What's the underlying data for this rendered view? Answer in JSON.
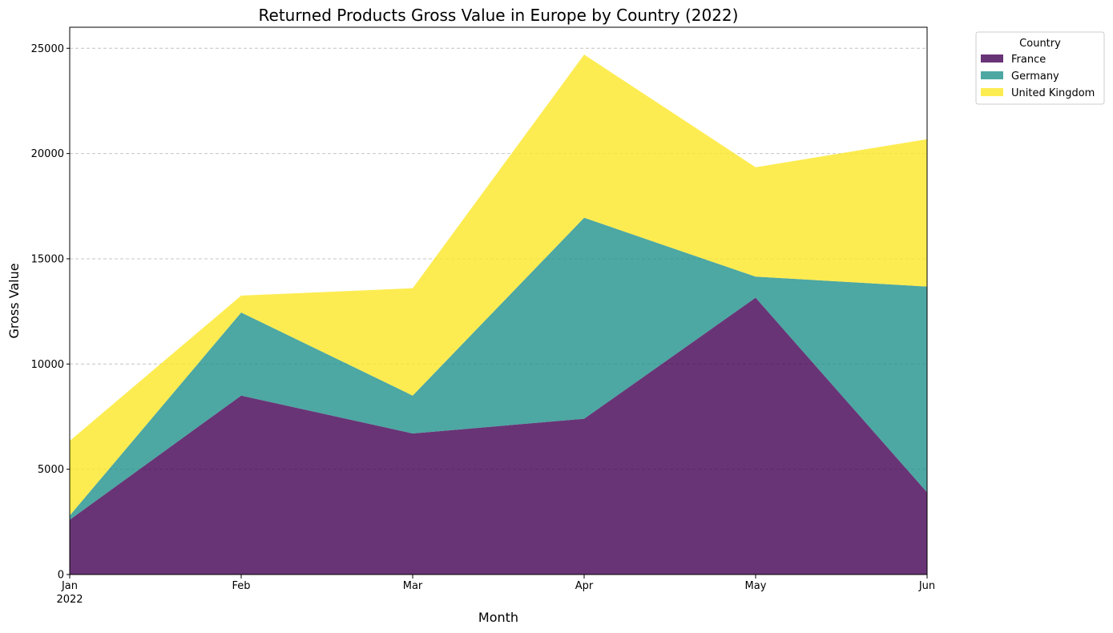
{
  "chart_data": {
    "type": "area",
    "stacked": true,
    "title": "Returned Products Gross Value in Europe by Country (2022)",
    "xlabel": "Month",
    "ylabel": "Gross Value",
    "categories": [
      "Jan",
      "Feb",
      "Mar",
      "Apr",
      "May",
      "Jun"
    ],
    "year_label": "2022",
    "ylim": [
      0,
      26000
    ],
    "yticks": [
      0,
      5000,
      10000,
      15000,
      20000,
      25000
    ],
    "grid": "y-dashed",
    "legend_title": "Country",
    "legend_position": "outside-top-right",
    "series": [
      {
        "name": "France",
        "color": "#440154",
        "values": [
          2600,
          8500,
          6700,
          7400,
          13150,
          3900
        ]
      },
      {
        "name": "Germany",
        "color": "#21918c",
        "values": [
          200,
          3950,
          1800,
          9550,
          1000,
          9780
        ]
      },
      {
        "name": "United Kingdom",
        "color": "#fde725",
        "values": [
          3550,
          800,
          5100,
          7750,
          5200,
          7000
        ]
      }
    ]
  }
}
